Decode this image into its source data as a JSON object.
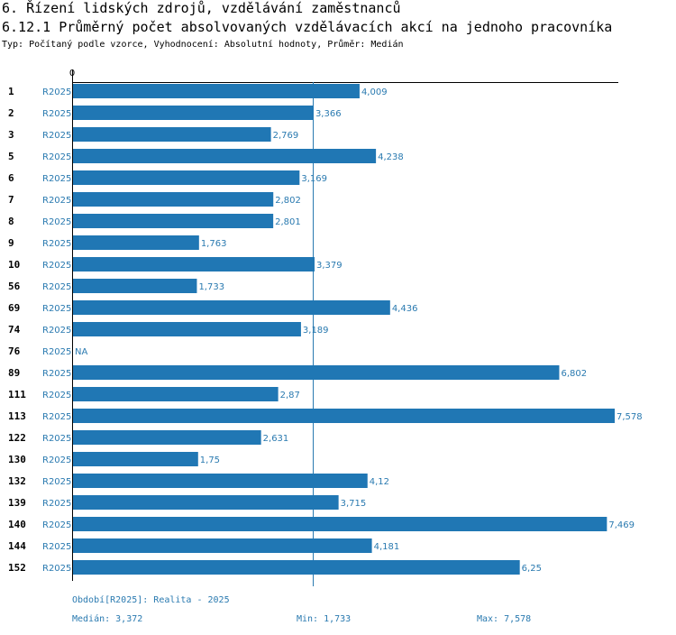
{
  "header": {
    "section_title": "6. Řízení lidských zdrojů, vzdělávání zaměstnanců",
    "chart_title": "6.12.1 Průměrný počet absolvovaných vzdělávacích akcí na jednoho pracovníka",
    "subtitle": "Typ: Počítaný podle vzorce, Vyhodnocení: Absolutní hodnoty, Průměr: Medián"
  },
  "chart_data": {
    "type": "bar",
    "orientation": "horizontal",
    "title": "6.12.1 Průměrný počet absolvovaných vzdělávacích akcí na jednoho pracovníka",
    "axis_zero_label": "0",
    "xlim": [
      0,
      7.578
    ],
    "median_line": 3.372,
    "bar_color": "#2077b4",
    "period": "R2025",
    "rows": [
      {
        "id": "1",
        "period": "R2025",
        "value": 4.009,
        "label": "4,009"
      },
      {
        "id": "2",
        "period": "R2025",
        "value": 3.366,
        "label": "3,366"
      },
      {
        "id": "3",
        "period": "R2025",
        "value": 2.769,
        "label": "2,769"
      },
      {
        "id": "5",
        "period": "R2025",
        "value": 4.238,
        "label": "4,238"
      },
      {
        "id": "6",
        "period": "R2025",
        "value": 3.169,
        "label": "3,169"
      },
      {
        "id": "7",
        "period": "R2025",
        "value": 2.802,
        "label": "2,802"
      },
      {
        "id": "8",
        "period": "R2025",
        "value": 2.801,
        "label": "2,801"
      },
      {
        "id": "9",
        "period": "R2025",
        "value": 1.763,
        "label": "1,763"
      },
      {
        "id": "10",
        "period": "R2025",
        "value": 3.379,
        "label": "3,379"
      },
      {
        "id": "56",
        "period": "R2025",
        "value": 1.733,
        "label": "1,733"
      },
      {
        "id": "69",
        "period": "R2025",
        "value": 4.436,
        "label": "4,436"
      },
      {
        "id": "74",
        "period": "R2025",
        "value": 3.189,
        "label": "3,189"
      },
      {
        "id": "76",
        "period": "R2025",
        "value": null,
        "label": "NA"
      },
      {
        "id": "89",
        "period": "R2025",
        "value": 6.802,
        "label": "6,802"
      },
      {
        "id": "111",
        "period": "R2025",
        "value": 2.87,
        "label": "2,87"
      },
      {
        "id": "113",
        "period": "R2025",
        "value": 7.578,
        "label": "7,578"
      },
      {
        "id": "122",
        "period": "R2025",
        "value": 2.631,
        "label": "2,631"
      },
      {
        "id": "130",
        "period": "R2025",
        "value": 1.75,
        "label": "1,75"
      },
      {
        "id": "132",
        "period": "R2025",
        "value": 4.12,
        "label": "4,12"
      },
      {
        "id": "139",
        "period": "R2025",
        "value": 3.715,
        "label": "3,715"
      },
      {
        "id": "140",
        "period": "R2025",
        "value": 7.469,
        "label": "7,469"
      },
      {
        "id": "144",
        "period": "R2025",
        "value": 4.181,
        "label": "4,181"
      },
      {
        "id": "152",
        "period": "R2025",
        "value": 6.25,
        "label": "6,25"
      }
    ]
  },
  "footer": {
    "period_note": "Období[R2025]: Realita - 2025",
    "median": "Medián: 3,372",
    "min": "Min: 1,733",
    "max": "Max: 7,578"
  }
}
